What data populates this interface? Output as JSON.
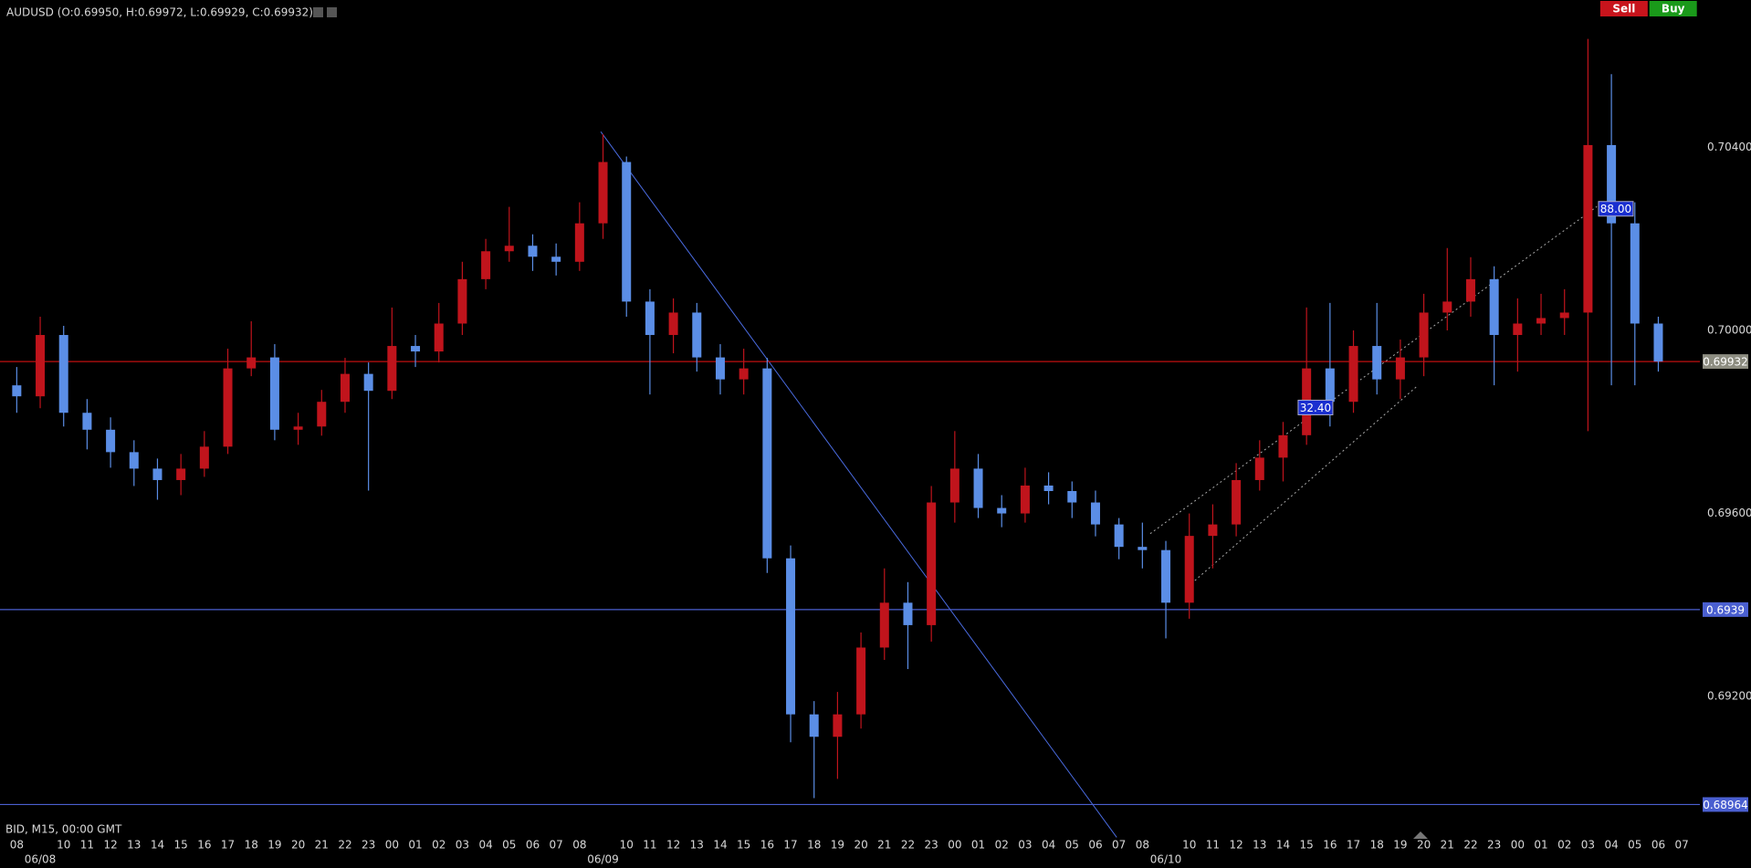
{
  "chart_data": {
    "type": "candlestick",
    "title": "AUDUSD (O:0.69950, H:0.69972, L:0.69929, C:0.69932)",
    "footer": "BID, M15, 00:00 GMT",
    "buttons": [
      {
        "label": "Sell",
        "color": "#c8141c"
      },
      {
        "label": "Buy",
        "color": "#1a9a1a"
      }
    ],
    "up_color": "#c0141c",
    "down_color": "#5b8ee6",
    "categories": [
      "08",
      "06/08",
      "10",
      "11",
      "12",
      "13",
      "14",
      "15",
      "16",
      "17",
      "18",
      "19",
      "20",
      "21",
      "22",
      "23",
      "00",
      "01",
      "02",
      "03",
      "04",
      "05",
      "06",
      "07",
      "08",
      "06/09",
      "10",
      "11",
      "12",
      "13",
      "14",
      "15",
      "16",
      "17",
      "18",
      "19",
      "20",
      "21",
      "22",
      "23",
      "00",
      "01",
      "02",
      "03",
      "04",
      "05",
      "06",
      "07",
      "08",
      "06/10",
      "10",
      "11",
      "12",
      "13",
      "14",
      "15",
      "16",
      "17",
      "18",
      "19",
      "20",
      "21",
      "22",
      "23",
      "00",
      "01",
      "02",
      "03",
      "04",
      "05",
      "06",
      "07"
    ],
    "open": [
      0.6988,
      0.69856,
      0.6999,
      0.6982,
      0.69783,
      0.69734,
      0.69698,
      0.69673,
      0.69698,
      0.69746,
      0.69917,
      0.69941,
      0.69783,
      0.6979,
      0.69844,
      0.69905,
      0.69868,
      0.69966,
      0.69954,
      0.70015,
      0.70112,
      0.70173,
      0.70185,
      0.70161,
      0.7015,
      0.70234,
      0.70368,
      0.70063,
      0.6999,
      0.70039,
      0.69941,
      0.69893,
      0.69917,
      0.69502,
      0.69161,
      0.69112,
      0.69161,
      0.69307,
      0.69405,
      0.69356,
      0.69624,
      0.69698,
      0.69612,
      0.696,
      0.69661,
      0.69649,
      0.69624,
      0.69576,
      0.69527,
      0.6952,
      0.69405,
      0.69551,
      0.69576,
      0.69673,
      0.69722,
      0.69771,
      0.69917,
      0.69844,
      0.69966,
      0.69893,
      0.69941,
      0.70039,
      0.70063,
      0.70112,
      0.6999,
      0.70015,
      0.70027,
      0.70039,
      0.70405,
      0.70234,
      0.70015,
      null
    ],
    "high": [
      0.6992,
      0.7003,
      0.7001,
      0.6985,
      0.6981,
      0.6976,
      0.6972,
      0.6973,
      0.6978,
      0.6996,
      0.7002,
      0.6997,
      0.6982,
      0.6987,
      0.6994,
      0.6993,
      0.7005,
      0.6999,
      0.7006,
      0.7015,
      0.702,
      0.7027,
      0.7021,
      0.7019,
      0.7028,
      0.70429,
      0.7038,
      0.7009,
      0.7007,
      0.7006,
      0.6997,
      0.6996,
      0.6994,
      0.6953,
      0.6919,
      0.6921,
      0.6934,
      0.6948,
      0.6945,
      0.6966,
      0.6978,
      0.6973,
      0.6964,
      0.697,
      0.6969,
      0.6967,
      0.6965,
      0.6959,
      0.6958,
      0.6954,
      0.696,
      0.6962,
      0.6971,
      0.6976,
      0.698,
      0.7005,
      0.7006,
      0.7,
      0.7006,
      0.6998,
      0.7008,
      0.7018,
      0.7016,
      0.7014,
      0.7007,
      0.7008,
      0.7009,
      0.70637,
      0.7056,
      0.7028,
      0.7003,
      null
    ],
    "low": [
      0.6982,
      0.6983,
      0.6979,
      0.6974,
      0.697,
      0.6966,
      0.6963,
      0.6964,
      0.6968,
      0.6973,
      0.699,
      0.6976,
      0.6975,
      0.6977,
      0.6982,
      0.6965,
      0.6985,
      0.6992,
      0.6993,
      0.6999,
      0.7009,
      0.7015,
      0.7013,
      0.7012,
      0.7013,
      0.702,
      0.7003,
      0.6986,
      0.6995,
      0.6991,
      0.6986,
      0.6986,
      0.6947,
      0.691,
      0.68978,
      0.6902,
      0.6913,
      0.6928,
      0.6926,
      0.6932,
      0.6958,
      0.6959,
      0.6957,
      0.6958,
      0.6962,
      0.6959,
      0.6955,
      0.695,
      0.6948,
      0.69327,
      0.6937,
      0.6948,
      0.6955,
      0.6965,
      0.6967,
      0.6975,
      0.6979,
      0.6982,
      0.6986,
      0.6985,
      0.699,
      0.7,
      0.7003,
      0.6988,
      0.6991,
      0.6999,
      0.6999,
      0.6978,
      0.6988,
      0.6988,
      0.6991,
      null
    ],
    "close": [
      0.69856,
      0.6999,
      0.6982,
      0.69783,
      0.69734,
      0.69698,
      0.69673,
      0.69698,
      0.69746,
      0.69917,
      0.69941,
      0.69783,
      0.6979,
      0.69844,
      0.69905,
      0.69868,
      0.69966,
      0.69954,
      0.70015,
      0.70112,
      0.70173,
      0.70185,
      0.70161,
      0.7015,
      0.70234,
      0.70368,
      0.70063,
      0.6999,
      0.70039,
      0.69941,
      0.69893,
      0.69917,
      0.69502,
      0.69161,
      0.69112,
      0.69161,
      0.69307,
      0.69405,
      0.69356,
      0.69624,
      0.69698,
      0.69612,
      0.696,
      0.69661,
      0.69649,
      0.69624,
      0.69576,
      0.69527,
      0.6952,
      0.69405,
      0.69551,
      0.69576,
      0.69673,
      0.69722,
      0.69771,
      0.69917,
      0.69844,
      0.69966,
      0.69893,
      0.69941,
      0.70039,
      0.70063,
      0.70112,
      0.6999,
      0.70015,
      0.70027,
      0.70039,
      0.70405,
      0.70234,
      0.70015,
      0.69932,
      null
    ],
    "ylim": [
      0.68929,
      0.70722
    ],
    "yticks": [
      {
        "value": 0.704,
        "label": "0.70400"
      },
      {
        "value": 0.7,
        "label": "0.70000"
      },
      {
        "value": 0.696,
        "label": "0.69600"
      },
      {
        "value": 0.692,
        "label": "0.69200"
      }
    ],
    "lines": [
      {
        "value": 0.69932,
        "color": "#c01010",
        "label_color": "#8c8c80"
      },
      {
        "value": 0.6939,
        "color": "#4a5fd0",
        "label_color": "#4a5fd0"
      },
      {
        "value": 0.68964,
        "color": "#4a5fd0",
        "label_color": "#4a5fd0"
      }
    ],
    "annotations": [
      "32.40",
      "88.00"
    ]
  }
}
